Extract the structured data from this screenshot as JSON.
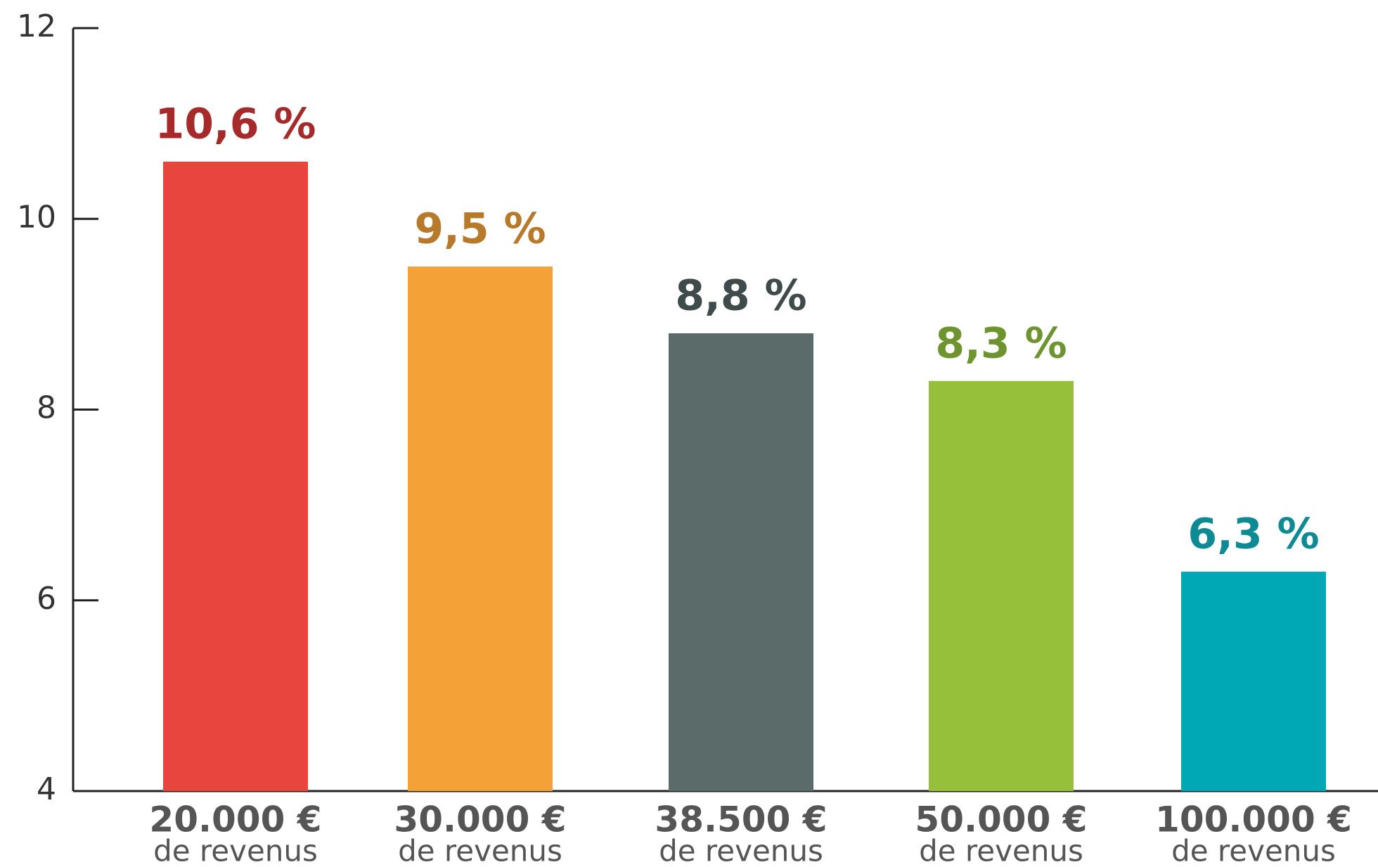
{
  "chart_data": {
    "type": "bar",
    "categories": [
      "20.000 €",
      "30.000 €",
      "38.500 €",
      "50.000 €",
      "100.000 €"
    ],
    "category_sublabels": [
      "de revenus",
      "de revenus",
      "de revenus",
      "de revenus",
      "de revenus"
    ],
    "values": [
      10.6,
      9.5,
      8.8,
      8.3,
      6.3
    ],
    "value_labels": [
      "10,6 %",
      "9,5 %",
      "8,8 %",
      "8,3 %",
      "6,3 %"
    ],
    "colors": [
      "#e8453c",
      "#f4a137",
      "#5a6b69",
      "#96bf3a",
      "#00a7b5"
    ],
    "label_colors": [
      "#a62a2a",
      "#b87a2a",
      "#3f4b4a",
      "#6e9430",
      "#0d8a93"
    ],
    "ylim": [
      4,
      12
    ],
    "yticks": [
      4,
      6,
      8,
      10,
      12
    ],
    "grid": false
  }
}
